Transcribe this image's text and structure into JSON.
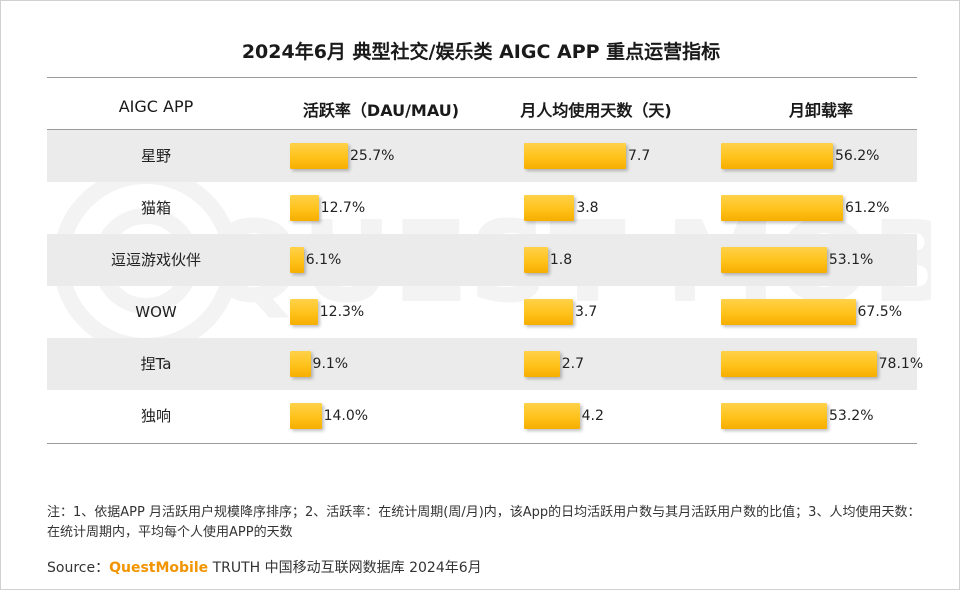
{
  "title": "2024年6月 典型社交/娱乐类 AIGC APP 重点运营指标",
  "colors": {
    "bar": "#ffc21a",
    "shade": "#ebebeb",
    "brand": "#f19400"
  },
  "chart_data": {
    "type": "bar",
    "title": "2024年6月 典型社交/娱乐类 AIGC APP 重点运营指标",
    "row_header": "AIGC APP",
    "categories": [
      "星野",
      "猫箱",
      "逗逗游戏伙伴",
      "WOW",
      "捏Ta",
      "独响"
    ],
    "series": [
      {
        "name": "活跃率（DAU/MAU)",
        "values": [
          25.7,
          12.7,
          6.1,
          12.3,
          9.1,
          14.0
        ],
        "labels": [
          "25.7%",
          "12.7%",
          "6.1%",
          "12.3%",
          "9.1%",
          "14.0%"
        ],
        "max": 60
      },
      {
        "name": "月人均使用天数（天)",
        "values": [
          7.7,
          3.8,
          1.8,
          3.7,
          2.7,
          4.2
        ],
        "labels": [
          "7.7",
          "3.8",
          "1.8",
          "3.7",
          "2.7",
          "4.2"
        ],
        "max": 18
      },
      {
        "name": "月卸载率",
        "values": [
          56.2,
          61.2,
          53.1,
          67.5,
          78.1,
          53.2
        ],
        "labels": [
          "56.2%",
          "61.2%",
          "53.1%",
          "67.5%",
          "78.1%",
          "53.2%"
        ],
        "max": 100
      }
    ]
  },
  "note": "注：1、依据APP 月活跃用户规模降序排序；2、活跃率：在统计周期(周/月)内，该App的日均活跃用户数与其月活跃用户数的比值；3、人均使用天数：在统计周期内，平均每个人使用APP的天数",
  "source": {
    "label": "Source：",
    "brand": "QuestMobile",
    "rest": " TRUTH 中国移动互联网数据库 2024年6月"
  },
  "watermark": "QUEST MOBILE"
}
